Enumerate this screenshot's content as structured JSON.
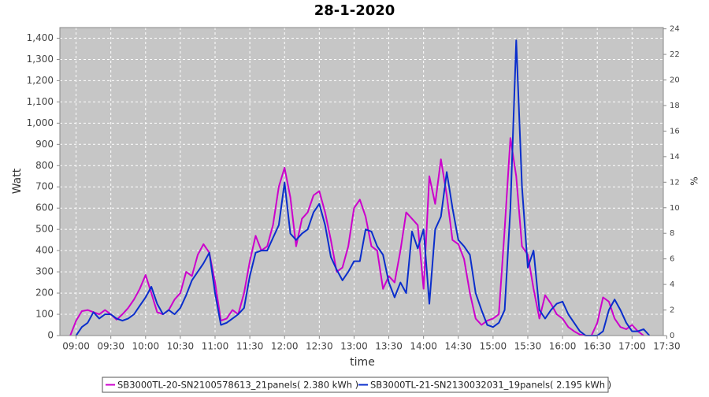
{
  "chart_data": {
    "type": "line",
    "title": "28-1-2020",
    "xlabel": "time",
    "ylabel": "Watt",
    "y2label": "%",
    "x": [
      "08:55",
      "09:00",
      "09:05",
      "09:10",
      "09:15",
      "09:20",
      "09:25",
      "09:30",
      "09:35",
      "09:40",
      "09:45",
      "09:50",
      "09:55",
      "10:00",
      "10:05",
      "10:10",
      "10:15",
      "10:20",
      "10:25",
      "10:30",
      "10:35",
      "10:40",
      "10:45",
      "10:50",
      "10:55",
      "11:00",
      "11:05",
      "11:10",
      "11:15",
      "11:20",
      "11:25",
      "11:30",
      "11:35",
      "11:40",
      "11:45",
      "11:50",
      "11:55",
      "12:00",
      "12:05",
      "12:10",
      "12:15",
      "12:20",
      "12:25",
      "12:30",
      "12:35",
      "12:40",
      "12:45",
      "12:50",
      "12:55",
      "13:00",
      "13:05",
      "13:10",
      "13:15",
      "13:20",
      "13:25",
      "13:30",
      "13:35",
      "13:40",
      "13:45",
      "13:50",
      "13:55",
      "14:00",
      "14:05",
      "14:10",
      "14:15",
      "14:20",
      "14:25",
      "14:30",
      "14:35",
      "14:40",
      "14:45",
      "14:50",
      "14:55",
      "15:00",
      "15:05",
      "15:10",
      "15:15",
      "15:20",
      "15:25",
      "15:30",
      "15:35",
      "15:40",
      "15:45",
      "15:50",
      "15:55",
      "16:00",
      "16:05",
      "16:10",
      "16:15",
      "16:20",
      "16:25",
      "16:30",
      "16:35",
      "16:40",
      "16:45",
      "16:50",
      "16:55",
      "17:00",
      "17:05",
      "17:10",
      "17:15"
    ],
    "series": [
      {
        "name": "SB3000TL-20-SN2100578613_21panels( 2.380 kWh )",
        "color": "#cc00cc",
        "values": [
          0,
          70,
          115,
          120,
          110,
          100,
          120,
          100,
          75,
          100,
          130,
          170,
          220,
          285,
          200,
          110,
          100,
          120,
          170,
          200,
          300,
          280,
          380,
          430,
          390,
          250,
          70,
          80,
          120,
          100,
          200,
          350,
          470,
          400,
          420,
          520,
          700,
          790,
          650,
          420,
          550,
          580,
          660,
          680,
          580,
          450,
          300,
          320,
          420,
          600,
          640,
          560,
          420,
          400,
          220,
          280,
          250,
          400,
          580,
          550,
          520,
          220,
          750,
          620,
          830,
          660,
          450,
          430,
          360,
          200,
          80,
          50,
          70,
          80,
          100,
          500,
          930,
          750,
          420,
          380,
          220,
          80,
          190,
          150,
          100,
          80,
          40,
          20,
          5,
          0,
          0,
          60,
          180,
          160,
          80,
          40,
          30,
          50,
          20,
          0,
          null
        ]
      },
      {
        "name": "SB3000TL-21-SN2130032031_19panels( 2.195 kWh )",
        "color": "#0a2ecc",
        "values": [
          null,
          0,
          40,
          60,
          110,
          80,
          100,
          100,
          80,
          70,
          80,
          100,
          140,
          180,
          230,
          150,
          100,
          120,
          100,
          130,
          190,
          260,
          300,
          340,
          390,
          200,
          50,
          60,
          80,
          100,
          130,
          280,
          390,
          400,
          400,
          460,
          520,
          720,
          480,
          450,
          480,
          500,
          580,
          620,
          520,
          370,
          310,
          260,
          300,
          350,
          350,
          500,
          490,
          420,
          380,
          250,
          180,
          250,
          200,
          490,
          410,
          500,
          150,
          500,
          560,
          770,
          600,
          450,
          420,
          380,
          200,
          120,
          50,
          40,
          60,
          120,
          600,
          1390,
          700,
          320,
          400,
          120,
          80,
          120,
          150,
          160,
          100,
          60,
          20,
          0,
          0,
          0,
          20,
          120,
          170,
          120,
          60,
          20,
          20,
          30,
          0
        ]
      }
    ],
    "xlim": [
      "08:46",
      "17:27"
    ],
    "xticks": [
      "09:00",
      "09:30",
      "10:00",
      "10:30",
      "11:00",
      "11:30",
      "12:00",
      "12:30",
      "13:00",
      "13:30",
      "14:00",
      "14:30",
      "15:00",
      "15:30",
      "16:00",
      "16:30",
      "17:00",
      "17:30"
    ],
    "ylim": [
      0,
      1450
    ],
    "yticks": [
      0,
      100,
      200,
      300,
      400,
      500,
      600,
      700,
      800,
      900,
      {
        "value": 1000,
        "label": "1,000"
      },
      {
        "value": 1100,
        "label": "1,100"
      },
      {
        "value": 1200,
        "label": "1,200"
      },
      {
        "value": 1300,
        "label": "1,300"
      },
      {
        "value": 1400,
        "label": "1,400"
      }
    ],
    "y2lim": [
      0,
      24.1
    ],
    "y2ticks": [
      0,
      2,
      4,
      6,
      8,
      10,
      12,
      14,
      16,
      18,
      20,
      22,
      24
    ],
    "grid": true
  }
}
